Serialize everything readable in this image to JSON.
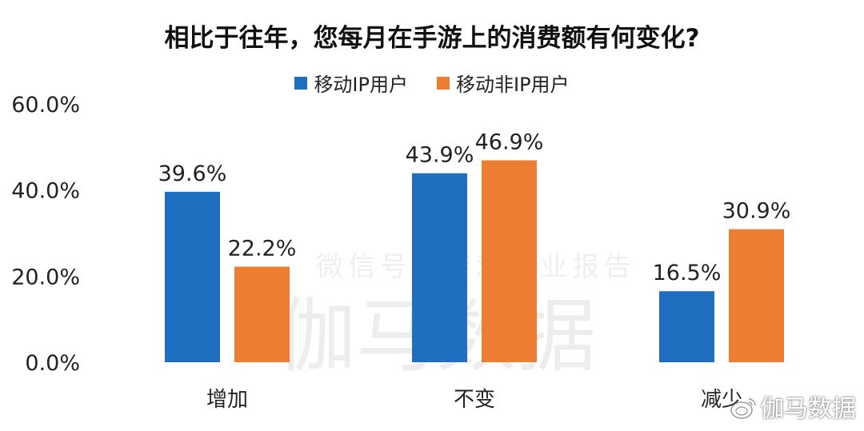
{
  "chart_data": {
    "type": "bar",
    "title": "相比于往年，您每月在手游上的消费额有何变化?",
    "categories": [
      "增加",
      "不变",
      "减少"
    ],
    "series": [
      {
        "name": "移动IP用户",
        "values": [
          39.6,
          43.9,
          16.5
        ],
        "labels": [
          "39.6%",
          "43.9%",
          "16.5%"
        ],
        "color": "#1F6FC1"
      },
      {
        "name": "移动非IP用户",
        "values": [
          22.2,
          46.9,
          30.9
        ],
        "labels": [
          "22.2%",
          "46.9%",
          "30.9%"
        ],
        "color": "#ED7D31"
      }
    ],
    "ylim": [
      0,
      60
    ],
    "yticks": [
      "0.0%",
      "20.0%",
      "40.0%",
      "60.0%"
    ],
    "ytick_values": [
      0,
      20,
      40,
      60
    ],
    "grid": false,
    "legend": "top-center"
  },
  "watermark": {
    "main": "伽马数据",
    "sub": "微信号：游戏产业报告",
    "weibo": "伽马数据"
  }
}
